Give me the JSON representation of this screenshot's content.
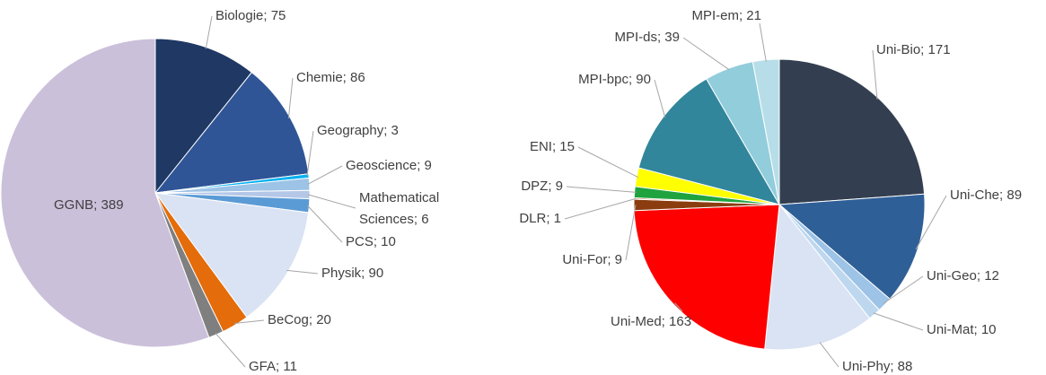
{
  "chart_data": [
    {
      "type": "pie",
      "values": [
        75,
        86,
        3,
        9,
        6,
        10,
        90,
        20,
        11,
        389
      ],
      "value_labels": [
        "Biologie; 75",
        "Chemie; 86",
        "Geography; 3",
        "Geoscience; 9",
        [
          "Mathematical",
          "Sciences; 6"
        ],
        "PCS; 10",
        "Physik; 90",
        "BeCog; 20",
        "GFA; 11",
        "GGNB; 389"
      ],
      "colors": [
        "#1f3864",
        "#2f5597",
        "#00b0f0",
        "#9dc3e6",
        "#b4c7e7",
        "#5b9bd5",
        "#dae3f3",
        "#e46c0a",
        "#7f7f7f",
        "#cbc0da"
      ]
    },
    {
      "type": "pie",
      "values": [
        171,
        89,
        12,
        10,
        88,
        163,
        9,
        1,
        9,
        15,
        90,
        39,
        21
      ],
      "value_labels": [
        "Uni-Bio; 171",
        "Uni-Che; 89",
        "Uni-Geo; 12",
        "Uni-Mat; 10",
        "Uni-Phy; 88",
        "Uni-Med; 163",
        "Uni-For; 9",
        "DLR; 1",
        "DPZ; 9",
        "ENI; 15",
        "MPI-bpc; 90",
        "MPI-ds; 39",
        "MPI-em; 21"
      ],
      "colors": [
        "#333f50",
        "#2f5f97",
        "#9dc3e6",
        "#bdd7ee",
        "#dae3f3",
        "#ff0000",
        "#8b3d0f",
        "#c55a11",
        "#1fa33f",
        "#ffff00",
        "#31869b",
        "#92cddc",
        "#b7dee8"
      ]
    }
  ]
}
